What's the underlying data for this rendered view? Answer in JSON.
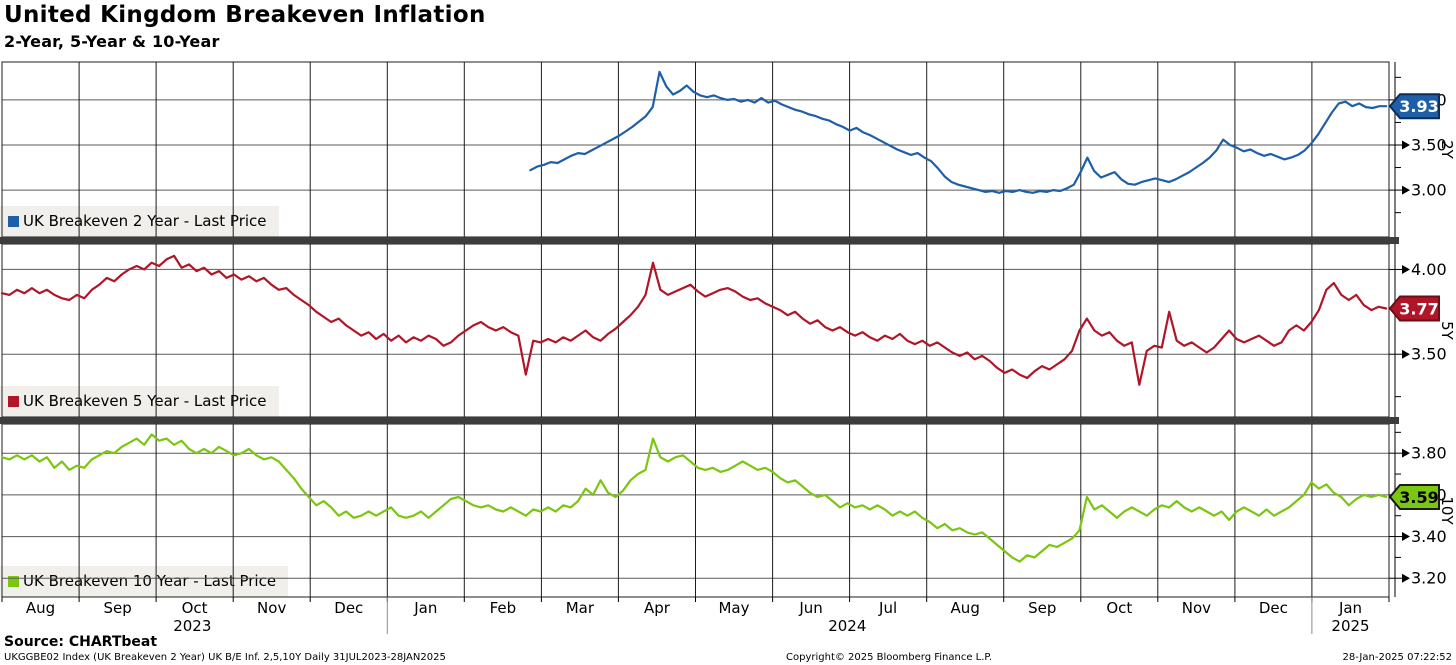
{
  "header": {
    "title": "United Kingdom Breakeven Inflation",
    "subtitle": "2-Year, 5-Year & 10-Year"
  },
  "footer": {
    "source": "Source: CHARTbeat",
    "description": "UKGGBE02 Index (UK Breakeven 2 Year) UK B/E Inf. 2,5,10Y  Daily 31JUL2023-28JAN2025",
    "copyright": "Copyright© 2025 Bloomberg Finance L.P.",
    "timestamp": "28-Jan-2025 07:22:52"
  },
  "chart_data": {
    "type": "line",
    "title": "United Kingdom Breakeven Inflation",
    "subtitle": "2-Year, 5-Year & 10-Year",
    "grid": true,
    "x_axis": {
      "months": [
        "Aug",
        "Sep",
        "Oct",
        "Nov",
        "Dec",
        "Jan",
        "Feb",
        "Mar",
        "Apr",
        "May",
        "Jun",
        "Jul",
        "Aug",
        "Sep",
        "Oct",
        "Nov",
        "Dec",
        "Jan"
      ],
      "years": [
        {
          "label": "2023",
          "pos": 2.47
        },
        {
          "label": "2024",
          "pos": 10.97
        },
        {
          "label": "2025",
          "pos": 17.5
        }
      ],
      "year_separators": [
        5,
        17
      ],
      "range_label": "31JUL2023-28JAN2025"
    },
    "panels": [
      {
        "id": "2y",
        "axis_label": "2Y",
        "legend": "UK Breakeven 2 Year - Last Price",
        "color": "#1f5fa8",
        "badge": {
          "label": "3.93",
          "text_color": "#ffffff",
          "border": "#0b2e5b"
        },
        "last_value": 3.93,
        "y_max": 4.42,
        "y_min": 2.48,
        "ticks_major": [
          4.0,
          3.5,
          3.0
        ],
        "ticks_minor": [
          4.25,
          3.75,
          3.25,
          2.75
        ],
        "series": {
          "x_start": 0.381,
          "x_end": 0.998,
          "values": [
            3.22,
            3.26,
            3.28,
            3.31,
            3.3,
            3.34,
            3.38,
            3.41,
            3.4,
            3.44,
            3.48,
            3.52,
            3.56,
            3.6,
            3.65,
            3.7,
            3.76,
            3.82,
            3.92,
            4.31,
            4.15,
            4.06,
            4.1,
            4.16,
            4.09,
            4.05,
            4.03,
            4.05,
            4.02,
            4.0,
            4.01,
            3.98,
            4.0,
            3.97,
            4.02,
            3.97,
            3.99,
            3.95,
            3.92,
            3.89,
            3.87,
            3.84,
            3.82,
            3.79,
            3.77,
            3.73,
            3.7,
            3.66,
            3.69,
            3.64,
            3.61,
            3.57,
            3.53,
            3.49,
            3.45,
            3.42,
            3.39,
            3.41,
            3.36,
            3.32,
            3.24,
            3.15,
            3.09,
            3.06,
            3.04,
            3.02,
            3.0,
            2.98,
            2.99,
            2.97,
            2.99,
            2.98,
            3.0,
            2.98,
            2.97,
            2.99,
            2.98,
            3.0,
            2.99,
            3.02,
            3.06,
            3.2,
            3.36,
            3.21,
            3.14,
            3.17,
            3.2,
            3.12,
            3.07,
            3.06,
            3.09,
            3.11,
            3.13,
            3.11,
            3.09,
            3.12,
            3.16,
            3.2,
            3.25,
            3.3,
            3.36,
            3.44,
            3.56,
            3.5,
            3.47,
            3.43,
            3.45,
            3.41,
            3.38,
            3.4,
            3.37,
            3.34,
            3.36,
            3.39,
            3.44,
            3.52,
            3.62,
            3.74,
            3.86,
            3.96,
            3.98,
            3.93,
            3.96,
            3.92,
            3.91,
            3.93,
            3.93
          ]
        }
      },
      {
        "id": "5y",
        "axis_label": "5Y",
        "legend": "UK Breakeven 5 Year - Last Price",
        "color": "#b01528",
        "badge": {
          "label": "3.77",
          "text_color": "#ffffff",
          "border": "#6d0d18"
        },
        "last_value": 3.77,
        "y_max": 4.15,
        "y_min": 3.13,
        "ticks_major": [
          4.0,
          3.5
        ],
        "ticks_minor": [
          3.75,
          3.25
        ],
        "series": {
          "x_start": 0.0,
          "x_end": 0.998,
          "values": [
            3.86,
            3.85,
            3.88,
            3.86,
            3.89,
            3.86,
            3.88,
            3.85,
            3.83,
            3.82,
            3.85,
            3.83,
            3.88,
            3.91,
            3.95,
            3.93,
            3.97,
            4.0,
            4.02,
            4.0,
            4.04,
            4.02,
            4.06,
            4.08,
            4.01,
            4.03,
            3.99,
            4.01,
            3.97,
            3.99,
            3.95,
            3.97,
            3.94,
            3.96,
            3.93,
            3.95,
            3.91,
            3.88,
            3.89,
            3.85,
            3.82,
            3.79,
            3.75,
            3.72,
            3.69,
            3.71,
            3.67,
            3.64,
            3.61,
            3.63,
            3.59,
            3.62,
            3.58,
            3.61,
            3.57,
            3.6,
            3.58,
            3.61,
            3.59,
            3.55,
            3.57,
            3.61,
            3.64,
            3.67,
            3.69,
            3.66,
            3.64,
            3.66,
            3.63,
            3.61,
            3.38,
            3.58,
            3.57,
            3.59,
            3.57,
            3.6,
            3.58,
            3.61,
            3.64,
            3.6,
            3.58,
            3.62,
            3.65,
            3.69,
            3.73,
            3.78,
            3.85,
            4.04,
            3.88,
            3.85,
            3.87,
            3.89,
            3.91,
            3.87,
            3.84,
            3.86,
            3.88,
            3.89,
            3.87,
            3.84,
            3.82,
            3.83,
            3.8,
            3.78,
            3.76,
            3.73,
            3.75,
            3.71,
            3.68,
            3.7,
            3.66,
            3.64,
            3.66,
            3.63,
            3.61,
            3.63,
            3.6,
            3.58,
            3.61,
            3.59,
            3.62,
            3.58,
            3.56,
            3.58,
            3.55,
            3.57,
            3.54,
            3.51,
            3.49,
            3.51,
            3.47,
            3.49,
            3.46,
            3.42,
            3.39,
            3.41,
            3.38,
            3.36,
            3.4,
            3.43,
            3.41,
            3.44,
            3.47,
            3.52,
            3.64,
            3.71,
            3.64,
            3.61,
            3.63,
            3.58,
            3.55,
            3.57,
            3.32,
            3.52,
            3.55,
            3.54,
            3.75,
            3.58,
            3.55,
            3.57,
            3.54,
            3.51,
            3.54,
            3.59,
            3.64,
            3.59,
            3.57,
            3.59,
            3.61,
            3.58,
            3.55,
            3.57,
            3.64,
            3.67,
            3.64,
            3.69,
            3.76,
            3.88,
            3.92,
            3.85,
            3.82,
            3.85,
            3.79,
            3.76,
            3.78,
            3.77
          ]
        }
      },
      {
        "id": "10y",
        "axis_label": "10Y",
        "legend": "UK Breakeven 10 Year - Last Price",
        "color": "#7ac611",
        "badge": {
          "label": "3.59",
          "text_color": "#000000",
          "border": "#1a1a1a"
        },
        "last_value": 3.59,
        "y_max": 3.94,
        "y_min": 3.11,
        "ticks_major": [
          3.8,
          3.6,
          3.4,
          3.2
        ],
        "ticks_minor": [
          3.9,
          3.7,
          3.5,
          3.3
        ],
        "series": {
          "x_start": 0.0,
          "x_end": 0.998,
          "values": [
            3.78,
            3.77,
            3.79,
            3.77,
            3.79,
            3.76,
            3.78,
            3.73,
            3.76,
            3.72,
            3.74,
            3.73,
            3.77,
            3.79,
            3.81,
            3.8,
            3.83,
            3.85,
            3.87,
            3.84,
            3.89,
            3.86,
            3.87,
            3.84,
            3.86,
            3.82,
            3.8,
            3.82,
            3.8,
            3.83,
            3.81,
            3.79,
            3.8,
            3.82,
            3.79,
            3.77,
            3.78,
            3.76,
            3.72,
            3.68,
            3.63,
            3.59,
            3.55,
            3.57,
            3.54,
            3.5,
            3.52,
            3.49,
            3.5,
            3.52,
            3.5,
            3.52,
            3.54,
            3.5,
            3.49,
            3.5,
            3.52,
            3.49,
            3.52,
            3.55,
            3.58,
            3.59,
            3.57,
            3.55,
            3.54,
            3.55,
            3.53,
            3.52,
            3.54,
            3.52,
            3.5,
            3.53,
            3.52,
            3.54,
            3.52,
            3.55,
            3.54,
            3.57,
            3.63,
            3.6,
            3.67,
            3.61,
            3.59,
            3.62,
            3.67,
            3.7,
            3.72,
            3.87,
            3.78,
            3.76,
            3.78,
            3.79,
            3.76,
            3.73,
            3.72,
            3.73,
            3.71,
            3.72,
            3.74,
            3.76,
            3.74,
            3.72,
            3.73,
            3.71,
            3.68,
            3.66,
            3.67,
            3.64,
            3.61,
            3.59,
            3.6,
            3.57,
            3.54,
            3.56,
            3.54,
            3.55,
            3.53,
            3.55,
            3.53,
            3.5,
            3.52,
            3.5,
            3.52,
            3.49,
            3.47,
            3.44,
            3.46,
            3.43,
            3.44,
            3.42,
            3.41,
            3.42,
            3.39,
            3.36,
            3.33,
            3.3,
            3.28,
            3.31,
            3.3,
            3.33,
            3.36,
            3.35,
            3.37,
            3.39,
            3.43,
            3.59,
            3.53,
            3.55,
            3.52,
            3.49,
            3.52,
            3.54,
            3.52,
            3.5,
            3.53,
            3.55,
            3.54,
            3.57,
            3.54,
            3.52,
            3.54,
            3.52,
            3.5,
            3.52,
            3.48,
            3.52,
            3.54,
            3.52,
            3.5,
            3.53,
            3.5,
            3.52,
            3.54,
            3.57,
            3.6,
            3.66,
            3.63,
            3.65,
            3.61,
            3.59,
            3.55,
            3.58,
            3.6,
            3.59,
            3.6,
            3.59
          ]
        }
      }
    ]
  }
}
